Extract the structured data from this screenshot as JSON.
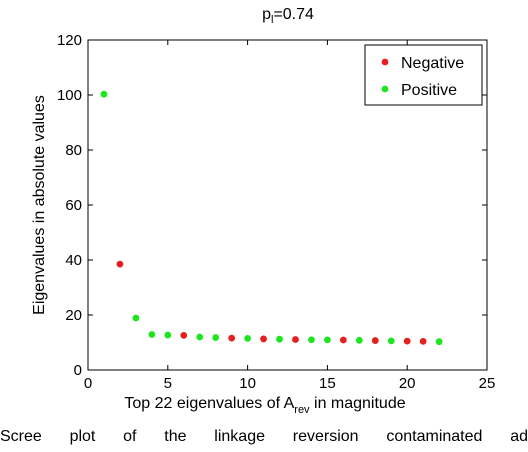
{
  "chart_data": {
    "type": "scatter",
    "title": "p",
    "title_sub": "l",
    "title_rest": "=0.74",
    "xlabel_pre": "Top 22 eigenvalues of A",
    "xlabel_sub": "rev",
    "xlabel_post": " in magnitude",
    "ylabel": "Eigenvalues in absolute values",
    "xlim": [
      0,
      25
    ],
    "ylim": [
      0,
      120
    ],
    "xticks": [
      "0",
      "5",
      "10",
      "15",
      "20",
      "25"
    ],
    "yticks": [
      "0",
      "20",
      "40",
      "60",
      "80",
      "100",
      "120"
    ],
    "grid": false,
    "legend_position": "top-right",
    "series": [
      {
        "name": "Negative",
        "color": "#e61e1e",
        "points": [
          [
            2,
            38.5
          ],
          [
            6,
            12.6
          ],
          [
            9,
            11.6
          ],
          [
            11,
            11.3
          ],
          [
            13,
            11.1
          ],
          [
            16,
            10.9
          ],
          [
            18,
            10.7
          ],
          [
            20,
            10.5
          ],
          [
            21,
            10.4
          ]
        ]
      },
      {
        "name": "Positive",
        "color": "#1ee61e",
        "points": [
          [
            1,
            100.3
          ],
          [
            3,
            18.9
          ],
          [
            4,
            12.9
          ],
          [
            5,
            12.7
          ],
          [
            7,
            12.0
          ],
          [
            8,
            11.8
          ],
          [
            10,
            11.5
          ],
          [
            12,
            11.2
          ],
          [
            14,
            11.0
          ],
          [
            15,
            10.95
          ],
          [
            17,
            10.8
          ],
          [
            19,
            10.6
          ],
          [
            22,
            10.3
          ]
        ]
      }
    ]
  },
  "caption": "Scree plot of the linkage reversion contaminated ad"
}
